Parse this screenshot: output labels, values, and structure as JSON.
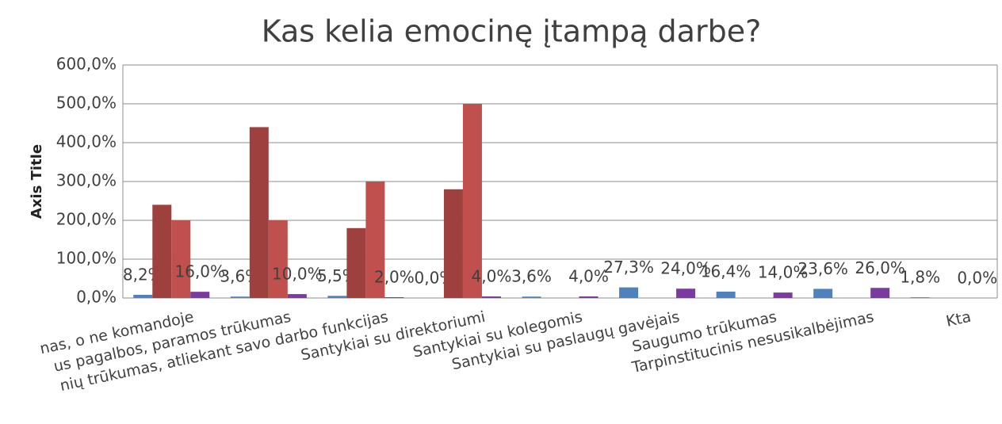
{
  "chart_data": {
    "type": "bar",
    "title": "Kas kelia emocinę įtampą darbe?",
    "y_label": "Axis Title",
    "categories": [
      "nas, o ne komandoje",
      "us pagalbos, paramos trūkumas",
      "nių trūkumas, atliekant savo darbo funkcijas",
      "Santykiai su direktoriumi",
      "Santykiai su kolegomis",
      "Santykiai su paslaugų gavėjais",
      "Saugumo trūkumas",
      "Tarpinstitucinis nesusikalbėjimas",
      "Kta"
    ],
    "series": [
      {
        "color": "#4f81bd",
        "values": [
          8.2,
          3.6,
          5.5,
          0.0,
          3.6,
          27.3,
          16.4,
          23.6,
          1.8
        ],
        "value_labels": [
          "8,2%",
          "3,6%",
          "5,5%",
          "0,0%",
          "3,6%",
          "27,3%",
          "16,4%",
          "23,6%",
          "1,8%"
        ]
      },
      {
        "color": "#9e413e",
        "values": [
          240,
          440,
          180,
          280,
          null,
          null,
          null,
          null,
          null
        ]
      },
      {
        "color": "#c0504d",
        "values": [
          200,
          200,
          300,
          500,
          null,
          null,
          null,
          null,
          null
        ]
      },
      {
        "color": "#7b3aa0",
        "values": [
          16.0,
          10.0,
          2.0,
          4.0,
          4.0,
          24.0,
          14.0,
          26.0,
          0.0
        ],
        "value_labels": [
          "16,0%",
          "10,0%",
          "2,0%",
          "4,0%",
          "4,0%",
          "24,0%",
          "14,0%",
          "26,0%",
          "0,0%"
        ]
      }
    ],
    "ylim": [
      0,
      600
    ],
    "yticks": [
      {
        "value": 0,
        "label": "0,0%"
      },
      {
        "value": 100,
        "label": "100,0%"
      },
      {
        "value": 200,
        "label": "200,0%"
      },
      {
        "value": 300,
        "label": "300,0%"
      },
      {
        "value": 400,
        "label": "400,0%"
      },
      {
        "value": 500,
        "label": "500,0%"
      },
      {
        "value": 600,
        "label": "600,0%"
      }
    ],
    "grid": true
  }
}
